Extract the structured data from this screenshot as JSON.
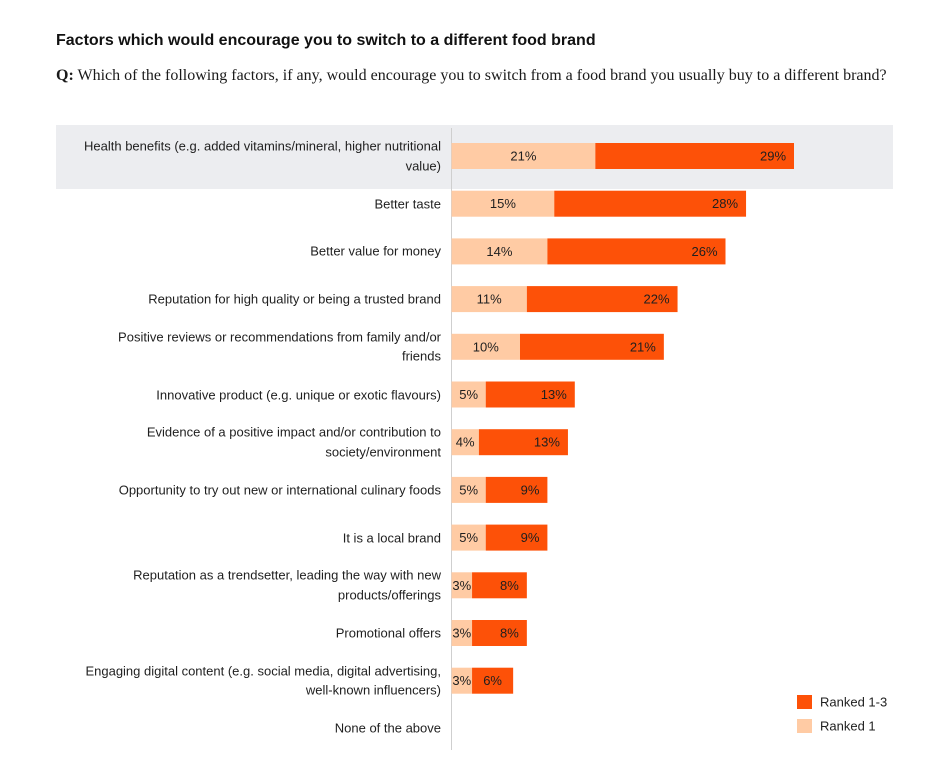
{
  "title": "Factors which would encourage you to switch to a different food brand",
  "question": {
    "prefix": "Q:",
    "text": "Which of the following factors, if any, would encourage you to switch from a food brand you usually buy to a different brand?"
  },
  "chart_data": {
    "type": "bar",
    "orientation": "horizontal",
    "stacked": true,
    "grid": false,
    "unit": "%",
    "categories": [
      "Health benefits (e.g. added vitamins/mineral, higher nutritional value)",
      "Better taste",
      "Better value for money",
      "Reputation for high quality or being a trusted brand",
      "Positive reviews or recommendations from family and/or friends",
      "Innovative product (e.g. unique or exotic flavours)",
      "Evidence of a positive impact and/or contribution to society/environment",
      "Opportunity to try out new or international culinary foods",
      "It is a local brand",
      "Reputation as a trendsetter, leading the way with new products/offerings",
      "Promotional offers",
      "Engaging digital content (e.g. social media, digital advertising, well-known influencers)",
      "None of the above"
    ],
    "series": [
      {
        "name": "Ranked 1",
        "color": "#FFCBA4",
        "values": [
          21,
          15,
          14,
          11,
          10,
          5,
          4,
          5,
          5,
          3,
          3,
          3,
          null
        ]
      },
      {
        "name": "Ranked 1-3",
        "color": "#FD5108",
        "values": [
          29,
          28,
          26,
          22,
          21,
          13,
          13,
          9,
          9,
          8,
          8,
          6,
          null
        ]
      }
    ],
    "legend": {
      "position": "bottom-right",
      "order": [
        1,
        0
      ]
    },
    "highlighted_index": 0,
    "highlight_color": "#ECEDF0"
  }
}
